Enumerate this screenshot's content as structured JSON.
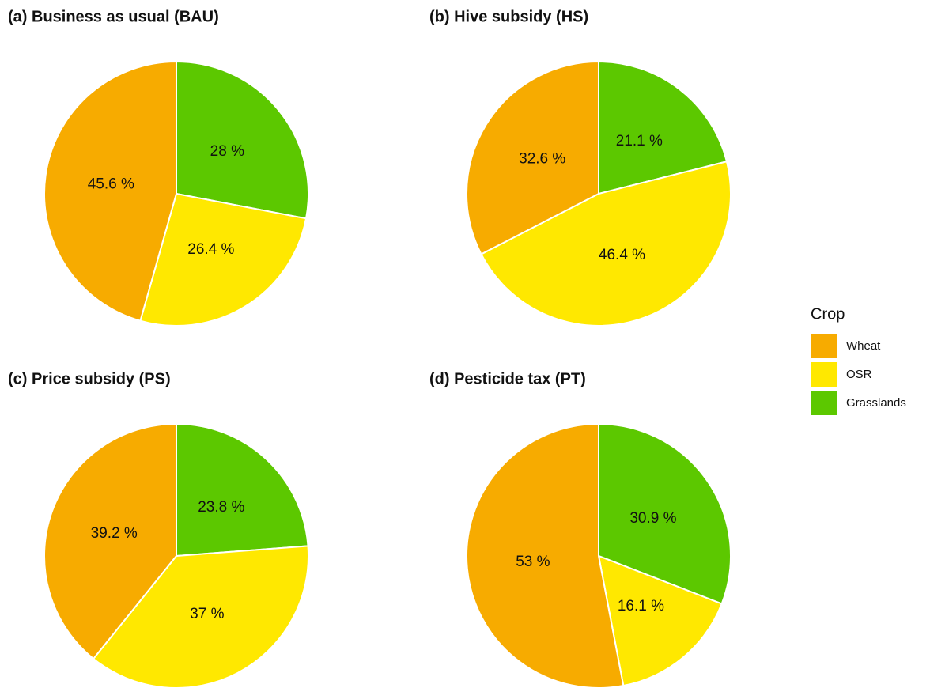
{
  "chart_data": [
    {
      "type": "pie",
      "title": "(a) Business as usual (BAU)",
      "values": [
        45.6,
        26.4,
        28
      ],
      "value_labels": [
        "45.6 %",
        "26.4 %",
        "28 %"
      ]
    },
    {
      "type": "pie",
      "title": "(b) Hive subsidy (HS)",
      "values": [
        32.6,
        46.4,
        21.1
      ],
      "value_labels": [
        "32.6 %",
        "46.4 %",
        "21.1 %"
      ]
    },
    {
      "type": "pie",
      "title": "(c) Price subsidy (PS)",
      "values": [
        39.2,
        37,
        23.8
      ],
      "value_labels": [
        "39.2 %",
        "37 %",
        "23.8 %"
      ]
    },
    {
      "type": "pie",
      "title": "(d) Pesticide tax (PT)",
      "values": [
        53,
        16.1,
        30.9
      ],
      "value_labels": [
        "53 %",
        "16.1 %",
        "30.9 %"
      ]
    }
  ],
  "legend": {
    "title": "Crop",
    "entries": [
      {
        "name": "Wheat",
        "color": "#f7ab00"
      },
      {
        "name": "OSR",
        "color": "#ffe800"
      },
      {
        "name": "Grasslands",
        "color": "#5cc800"
      }
    ]
  }
}
